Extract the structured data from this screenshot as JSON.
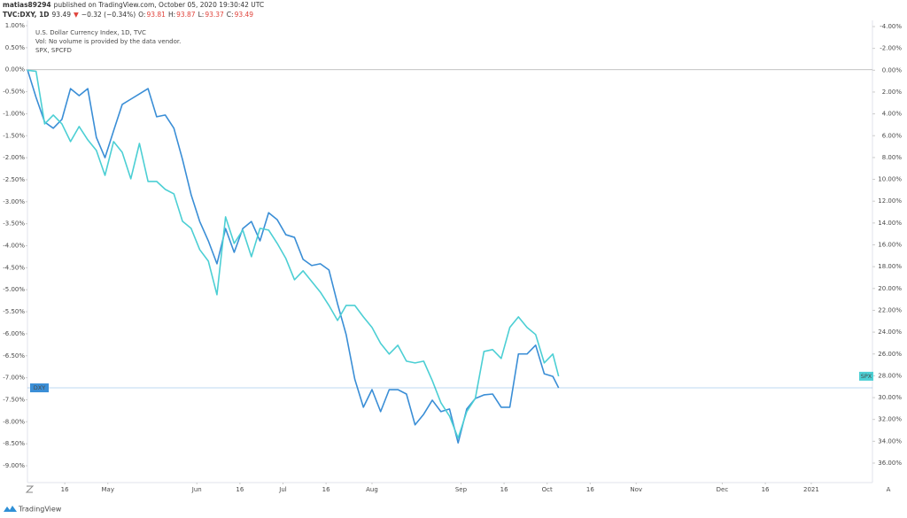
{
  "header": {
    "author": "matias89294",
    "published": "published on TradingView.com, October 05, 2020 19:30:42 UTC",
    "symbol": "TVC:DXY, 1D",
    "last": "93.49",
    "arrow": "▼",
    "change": "−0.32 (−0.34%)",
    "ohlc": [
      {
        "label": "O:",
        "value": "93.81"
      },
      {
        "label": "H:",
        "value": "93.87"
      },
      {
        "label": "L:",
        "value": "93.37"
      },
      {
        "label": "C:",
        "value": "93.49"
      }
    ]
  },
  "footer": {
    "brand": "TradingView",
    "auto_button": "A"
  },
  "chart_data": {
    "type": "line",
    "legend_lines": [
      "U.S. Dollar Currency Index, 1D, TVC",
      "Vol: No volume is provided by the data vendor.",
      "SPX, SPCFD"
    ],
    "x": [
      "2020-04-03",
      "2020-04-06",
      "2020-04-09",
      "2020-04-12",
      "2020-04-15",
      "2020-04-18",
      "2020-04-21",
      "2020-04-24",
      "2020-04-27",
      "2020-04-30",
      "2020-05-03",
      "2020-05-06",
      "2020-05-09",
      "2020-05-12",
      "2020-05-15",
      "2020-05-18",
      "2020-05-21",
      "2020-05-24",
      "2020-05-27",
      "2020-05-30",
      "2020-06-02",
      "2020-06-05",
      "2020-06-08",
      "2020-06-11",
      "2020-06-14",
      "2020-06-17",
      "2020-06-20",
      "2020-06-23",
      "2020-06-26",
      "2020-06-29",
      "2020-07-02",
      "2020-07-05",
      "2020-07-08",
      "2020-07-11",
      "2020-07-14",
      "2020-07-17",
      "2020-07-20",
      "2020-07-23",
      "2020-07-26",
      "2020-07-29",
      "2020-08-01",
      "2020-08-04",
      "2020-08-07",
      "2020-08-10",
      "2020-08-13",
      "2020-08-16",
      "2020-08-19",
      "2020-08-22",
      "2020-08-25",
      "2020-08-28",
      "2020-08-31",
      "2020-09-03",
      "2020-09-06",
      "2020-09-09",
      "2020-09-12",
      "2020-09-15",
      "2020-09-18",
      "2020-09-21",
      "2020-09-24",
      "2020-09-27",
      "2020-09-30",
      "2020-10-03",
      "2020-10-05"
    ],
    "series": [
      {
        "name": "DXY",
        "color": "#3a8ed6",
        "values": [
          0.0,
          -0.63,
          -1.19,
          -1.33,
          -1.13,
          -0.43,
          -0.59,
          -0.43,
          -1.54,
          -2.0,
          -1.39,
          -0.79,
          -0.67,
          -0.55,
          -0.43,
          -1.07,
          -1.03,
          -1.33,
          -2.04,
          -2.84,
          -3.45,
          -3.89,
          -4.41,
          -3.61,
          -4.15,
          -3.61,
          -3.45,
          -3.89,
          -3.25,
          -3.41,
          -3.75,
          -3.81,
          -4.31,
          -4.45,
          -4.41,
          -4.55,
          -5.32,
          -6.02,
          -7.03,
          -7.67,
          -7.27,
          -7.77,
          -7.27,
          -7.27,
          -7.37,
          -8.07,
          -7.83,
          -7.51,
          -7.77,
          -7.71,
          -8.48,
          -7.71,
          -7.47,
          -7.39,
          -7.37,
          -7.67,
          -7.67,
          -6.46,
          -6.46,
          -6.26,
          -6.91,
          -6.97,
          -7.23
        ]
      },
      {
        "name": "SPX",
        "color": "#4ccfd4",
        "axis": "y2",
        "values": [
          0.0,
          0.1,
          4.92,
          4.11,
          4.92,
          6.54,
          5.16,
          6.38,
          7.35,
          9.63,
          6.54,
          7.52,
          9.95,
          6.71,
          10.19,
          10.19,
          10.92,
          11.33,
          13.84,
          14.49,
          16.44,
          17.49,
          20.57,
          13.44,
          15.87,
          14.65,
          17.09,
          14.49,
          14.65,
          15.87,
          17.25,
          19.2,
          18.38,
          19.36,
          20.33,
          21.55,
          22.93,
          21.55,
          21.55,
          22.6,
          23.57,
          25.03,
          26.01,
          25.2,
          26.66,
          26.82,
          26.66,
          28.44,
          30.47,
          31.69,
          33.71,
          31.28,
          30.06,
          25.77,
          25.6,
          26.41,
          23.57,
          22.6,
          23.57,
          24.22,
          26.82,
          26.01,
          28.04
        ]
      }
    ],
    "xlim": [
      "2020-04-03",
      "2021-01-22"
    ],
    "xticks": [
      {
        "value": "2020-04-16",
        "label": "16"
      },
      {
        "value": "2020-05-01",
        "label": "May"
      },
      {
        "value": "2020-06-01",
        "label": "Jun"
      },
      {
        "value": "2020-06-16",
        "label": "16"
      },
      {
        "value": "2020-07-01",
        "label": "Jul"
      },
      {
        "value": "2020-07-16",
        "label": "16"
      },
      {
        "value": "2020-08-01",
        "label": "Aug"
      },
      {
        "value": "2020-09-01",
        "label": "Sep"
      },
      {
        "value": "2020-09-16",
        "label": "16"
      },
      {
        "value": "2020-10-01",
        "label": "Oct"
      },
      {
        "value": "2020-10-16",
        "label": "16"
      },
      {
        "value": "2020-11-01",
        "label": "Nov"
      },
      {
        "value": "2020-12-01",
        "label": "Dec"
      },
      {
        "value": "2020-12-16",
        "label": "16"
      },
      {
        "value": "2021-01-01",
        "label": "2021"
      }
    ],
    "ylim": [
      -9,
      1
    ],
    "yticks": [
      {
        "value": 1,
        "label": "1.00%"
      },
      {
        "value": 0.5,
        "label": "0.50%"
      },
      {
        "value": 0,
        "label": "0.00%"
      },
      {
        "value": -0.5,
        "label": "-0.50%"
      },
      {
        "value": -1,
        "label": "-1.00%"
      },
      {
        "value": -1.5,
        "label": "-1.50%"
      },
      {
        "value": -2,
        "label": "-2.00%"
      },
      {
        "value": -2.5,
        "label": "-2.50%"
      },
      {
        "value": -3,
        "label": "-3.00%"
      },
      {
        "value": -3.5,
        "label": "-3.50%"
      },
      {
        "value": -4,
        "label": "-4.00%"
      },
      {
        "value": -4.5,
        "label": "-4.50%"
      },
      {
        "value": -5,
        "label": "-5.00%"
      },
      {
        "value": -5.5,
        "label": "-5.50%"
      },
      {
        "value": -6,
        "label": "-6.00%"
      },
      {
        "value": -6.5,
        "label": "-6.50%"
      },
      {
        "value": -7,
        "label": "-7.00%"
      },
      {
        "value": -7.5,
        "label": "-7.50%"
      },
      {
        "value": -8,
        "label": "-8.00%"
      },
      {
        "value": -8.5,
        "label": "-8.50%"
      },
      {
        "value": -9,
        "label": "-9.00%"
      }
    ],
    "y2lim": [
      36,
      -4
    ],
    "y2ticks": [
      {
        "value": -4,
        "label": "-4.00%"
      },
      {
        "value": -2,
        "label": "-2.00%"
      },
      {
        "value": 0,
        "label": "0.00%"
      },
      {
        "value": 2,
        "label": "2.00%"
      },
      {
        "value": 4,
        "label": "4.00%"
      },
      {
        "value": 6,
        "label": "6.00%"
      },
      {
        "value": 8,
        "label": "8.00%"
      },
      {
        "value": 10,
        "label": "10.00%"
      },
      {
        "value": 12,
        "label": "12.00%"
      },
      {
        "value": 14,
        "label": "14.00%"
      },
      {
        "value": 16,
        "label": "16.00%"
      },
      {
        "value": 18,
        "label": "18.00%"
      },
      {
        "value": 20,
        "label": "20.00%"
      },
      {
        "value": 22,
        "label": "22.00%"
      },
      {
        "value": 24,
        "label": "24.00%"
      },
      {
        "value": 26,
        "label": "26.00%"
      },
      {
        "value": 28,
        "label": "28.00%"
      },
      {
        "value": 30,
        "label": "30.00%"
      },
      {
        "value": 32,
        "label": "32.00%"
      },
      {
        "value": 34,
        "label": "34.00%"
      },
      {
        "value": 36,
        "label": "36.00%"
      }
    ],
    "grid": false
  }
}
